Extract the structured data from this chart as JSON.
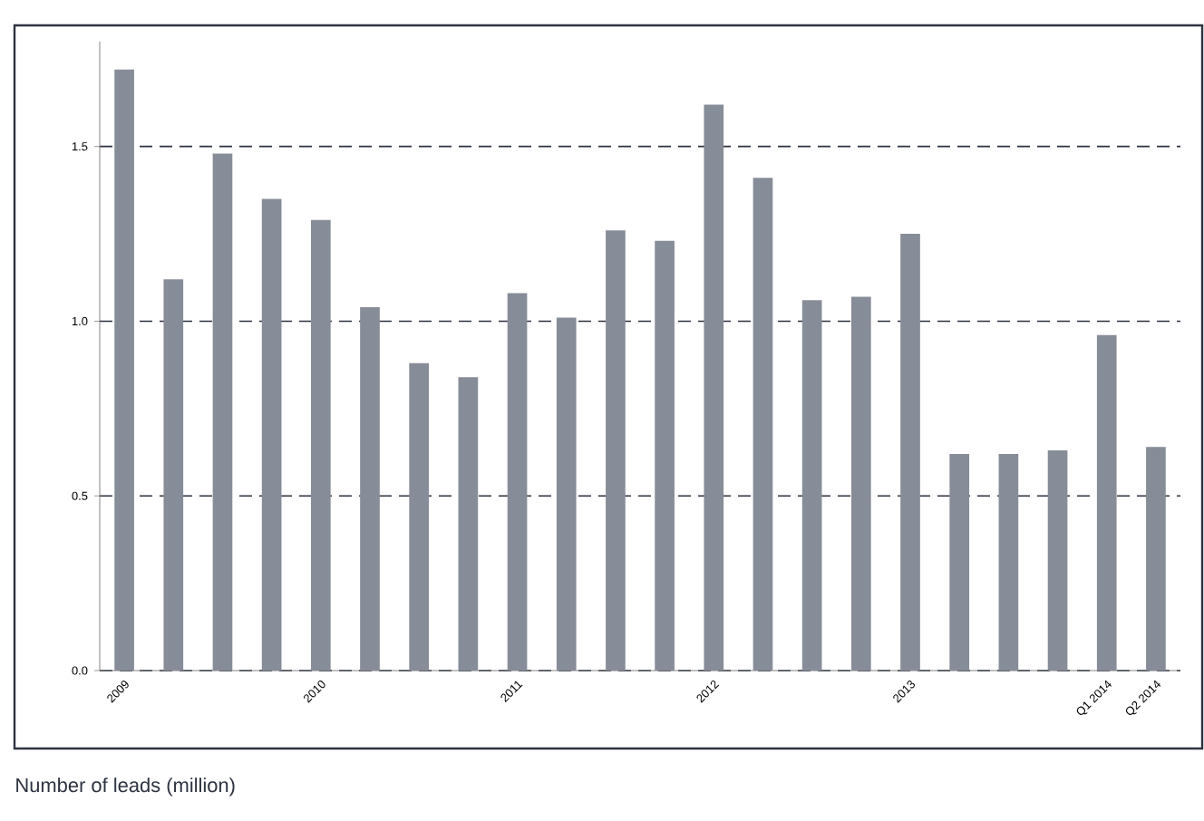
{
  "chart_data": {
    "type": "bar",
    "title": "Number of leads (million)",
    "categories": [
      "2009",
      null,
      null,
      null,
      "2010",
      null,
      null,
      null,
      "2011",
      null,
      null,
      null,
      "2012",
      null,
      null,
      null,
      "2013",
      null,
      null,
      null,
      "Q1 2014",
      "Q2 2014"
    ],
    "values": [
      1.72,
      1.12,
      1.48,
      1.35,
      1.29,
      1.04,
      0.88,
      0.84,
      1.08,
      1.01,
      1.26,
      1.23,
      1.62,
      1.41,
      1.06,
      1.07,
      1.25,
      0.62,
      0.62,
      0.63,
      0.96,
      0.64
    ],
    "color": "#868c98",
    "ylim": [
      0,
      1.8
    ],
    "yticks": [
      {
        "value": 0,
        "label": "0.0"
      },
      {
        "value": 0.5,
        "label": "0.5"
      },
      {
        "value": 1,
        "label": "1.0"
      },
      {
        "value": 1.5,
        "label": "1.5"
      }
    ],
    "grid": "y",
    "line_style": "dashed"
  }
}
